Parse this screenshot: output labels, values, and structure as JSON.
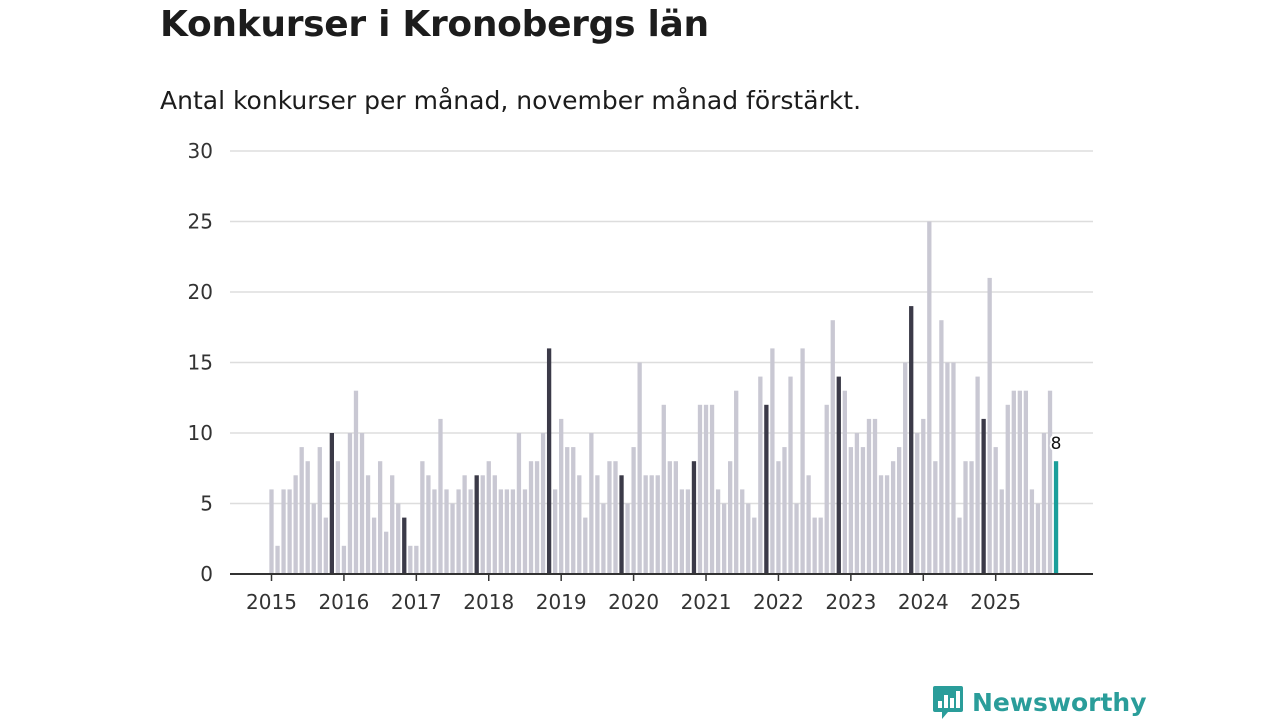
{
  "chart_data": {
    "type": "bar",
    "title": "Konkurser i Kronobergs län",
    "subtitle": "Antal konkurser per månad, november månad förstärkt.",
    "xlabel": "",
    "ylabel": "",
    "ylim": [
      0,
      30
    ],
    "yticks": [
      "0",
      "5",
      "10",
      "15",
      "20",
      "25",
      "30"
    ],
    "xtick_labels": [
      "2015",
      "2016",
      "2017",
      "2018",
      "2019",
      "2020",
      "2021",
      "2022",
      "2023",
      "2024",
      "2025"
    ],
    "start": "2015-01",
    "highlight_month": "november",
    "last_value_label": "8",
    "values": [
      6,
      2,
      6,
      6,
      7,
      9,
      8,
      5,
      9,
      4,
      10,
      8,
      2,
      10,
      13,
      10,
      7,
      4,
      8,
      3,
      7,
      5,
      4,
      2,
      2,
      8,
      7,
      6,
      11,
      6,
      5,
      6,
      7,
      6,
      7,
      7,
      8,
      7,
      6,
      6,
      6,
      10,
      6,
      8,
      8,
      10,
      16,
      6,
      11,
      9,
      9,
      7,
      4,
      10,
      7,
      5,
      8,
      8,
      7,
      5,
      9,
      15,
      7,
      7,
      7,
      12,
      8,
      8,
      6,
      6,
      8,
      12,
      12,
      12,
      6,
      5,
      8,
      13,
      6,
      5,
      4,
      14,
      12,
      16,
      8,
      9,
      14,
      5,
      16,
      7,
      4,
      4,
      12,
      18,
      14,
      13,
      9,
      10,
      9,
      11,
      11,
      7,
      7,
      8,
      9,
      15,
      19,
      10,
      11,
      25,
      8,
      18,
      15,
      15,
      4,
      8,
      8,
      14,
      11,
      21,
      9,
      6,
      12,
      13,
      13,
      13,
      6,
      5,
      10,
      13,
      8
    ],
    "colors": {
      "bar": "#c9c8d3",
      "highlight": "#3b3a48",
      "latest": "#1a9e9a",
      "grid": "#dddddd",
      "axis": "#333333"
    }
  },
  "branding": {
    "logo_text": "Newsworthy",
    "logo_color": "#2a9d9a"
  }
}
